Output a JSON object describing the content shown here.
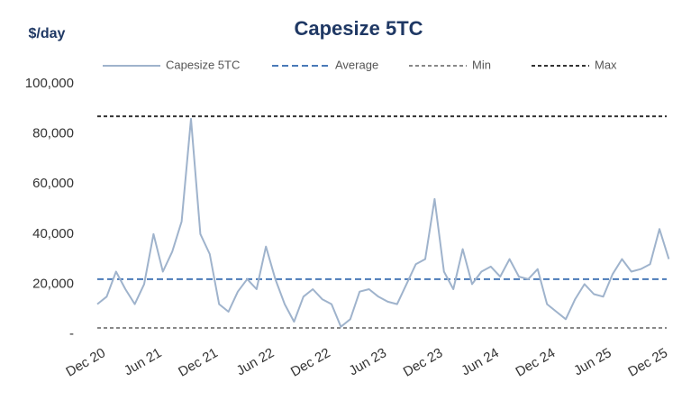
{
  "chart_data": {
    "type": "line",
    "title": "Capesize 5TC",
    "y_label": "$/day",
    "categories": [
      "Dec 20",
      null,
      null,
      null,
      null,
      null,
      "Jun 21",
      null,
      null,
      null,
      null,
      null,
      "Dec 21",
      null,
      null,
      null,
      null,
      null,
      "Jun 22",
      null,
      null,
      null,
      null,
      null,
      "Dec 22",
      null,
      null,
      null,
      null,
      null,
      "Jun 23",
      null,
      null,
      null,
      null,
      null,
      "Dec 23",
      null,
      null,
      null,
      null,
      null,
      "Jun 24",
      null,
      null,
      null,
      null,
      null,
      "Dec 24",
      null,
      null,
      null,
      null,
      null,
      "Jun 25",
      null,
      null,
      null,
      null,
      null,
      "Dec 25",
      null
    ],
    "series": [
      {
        "name": "Capesize 5TC",
        "color": "#9fb3cc",
        "values": [
          12000,
          15000,
          25000,
          18000,
          12000,
          20000,
          40000,
          25000,
          33000,
          45000,
          86000,
          40000,
          32000,
          12000,
          9000,
          17000,
          22000,
          18000,
          35000,
          22000,
          12000,
          5000,
          15000,
          18000,
          14000,
          12000,
          3000,
          6000,
          17000,
          18000,
          15000,
          13000,
          12000,
          20000,
          28000,
          30000,
          54000,
          25000,
          18000,
          34000,
          20000,
          25000,
          27000,
          23000,
          30000,
          23000,
          22000,
          26000,
          12000,
          9000,
          6000,
          14000,
          20000,
          16000,
          15000,
          24000,
          30000,
          25000,
          26000,
          28000,
          42000,
          30000
        ]
      }
    ],
    "reference_lines": [
      {
        "name": "Average",
        "value": 22000,
        "color": "#4a7ab8"
      },
      {
        "name": "Min",
        "value": 2500,
        "color": "#888888"
      },
      {
        "name": "Max",
        "value": 87000,
        "color": "#333333"
      }
    ],
    "ylim": [
      0,
      100000
    ],
    "yticks": [
      {
        "value": 0,
        "label": "-"
      },
      {
        "value": 20000,
        "label": "20,000"
      },
      {
        "value": 40000,
        "label": "40,000"
      },
      {
        "value": 60000,
        "label": "60,000"
      },
      {
        "value": 80000,
        "label": "80,000"
      },
      {
        "value": 100000,
        "label": "100,000"
      }
    ],
    "grid": false,
    "legend": "top"
  }
}
